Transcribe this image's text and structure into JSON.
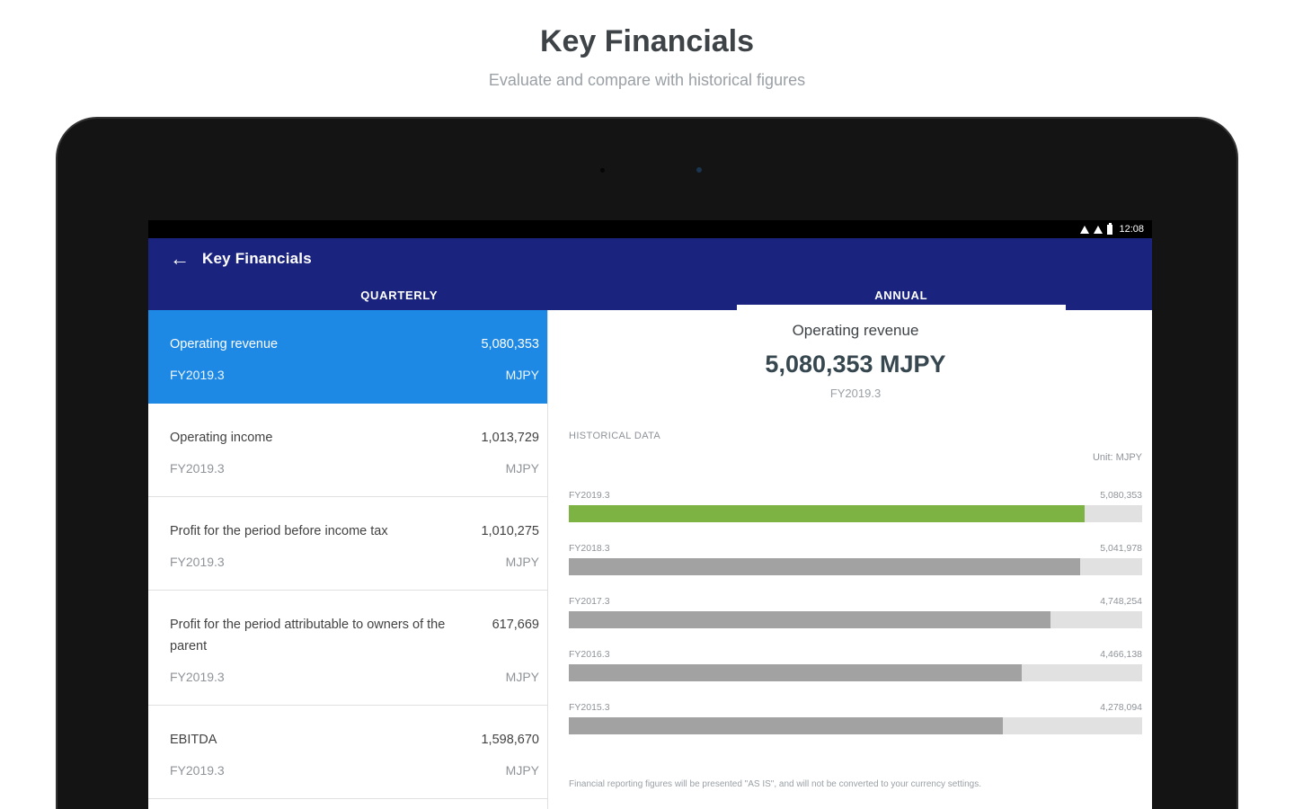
{
  "page": {
    "title": "Key Financials",
    "subtitle": "Evaluate and compare with historical figures"
  },
  "status_bar": {
    "time": "12:08"
  },
  "app_bar": {
    "title": "Key Financials",
    "back_icon": "←"
  },
  "tabs": [
    {
      "label": "QUARTERLY"
    },
    {
      "label": "ANNUAL"
    }
  ],
  "quarterly_list": {
    "items": [
      {
        "name": "Operating revenue",
        "value": "5,080,353",
        "period": "FY2019.3",
        "unit": "MJPY",
        "selected": true
      },
      {
        "name": "Operating income",
        "value": "1,013,729",
        "period": "FY2019.3",
        "unit": "MJPY",
        "selected": false
      },
      {
        "name": "Profit for the period before income tax",
        "value": "1,010,275",
        "period": "FY2019.3",
        "unit": "MJPY",
        "selected": false
      },
      {
        "name": "Profit for the period attributable to owners of the parent",
        "value": "617,669",
        "period": "FY2019.3",
        "unit": "MJPY",
        "selected": false
      },
      {
        "name": "EBITDA",
        "value": "1,598,670",
        "period": "FY2019.3",
        "unit": "MJPY",
        "selected": false
      }
    ]
  },
  "detail": {
    "title": "Operating revenue",
    "value": "5,080,353 MJPY",
    "period": "FY2019.3",
    "section_label": "HISTORICAL DATA",
    "unit_label": "Unit: MJPY",
    "footnote": "Financial reporting figures will be presented \"AS IS\", and will not be converted to your currency settings."
  },
  "colors": {
    "app_bar": "#1A237E",
    "selected_item": "#1E88E5",
    "highlight_bar": "#7CB342",
    "bar": "#A2A2A2",
    "track": "#E1E1E1"
  },
  "chart_data": {
    "type": "bar",
    "orientation": "horizontal",
    "title": "Operating revenue",
    "unit": "MJPY",
    "categories": [
      "FY2019.3",
      "FY2018.3",
      "FY2017.3",
      "FY2016.3",
      "FY2015.3"
    ],
    "values": [
      5080353,
      5041978,
      4748254,
      4466138,
      4278094
    ],
    "value_labels": [
      "5,080,353",
      "5,041,978",
      "4,748,254",
      "4,466,138",
      "4,278,094"
    ],
    "scale_max": 5650000,
    "highlight_index": 0,
    "colors": {
      "highlight": "#7CB342",
      "bar": "#A2A2A2",
      "track": "#E1E1E1"
    },
    "grid": false,
    "legend": "none"
  }
}
